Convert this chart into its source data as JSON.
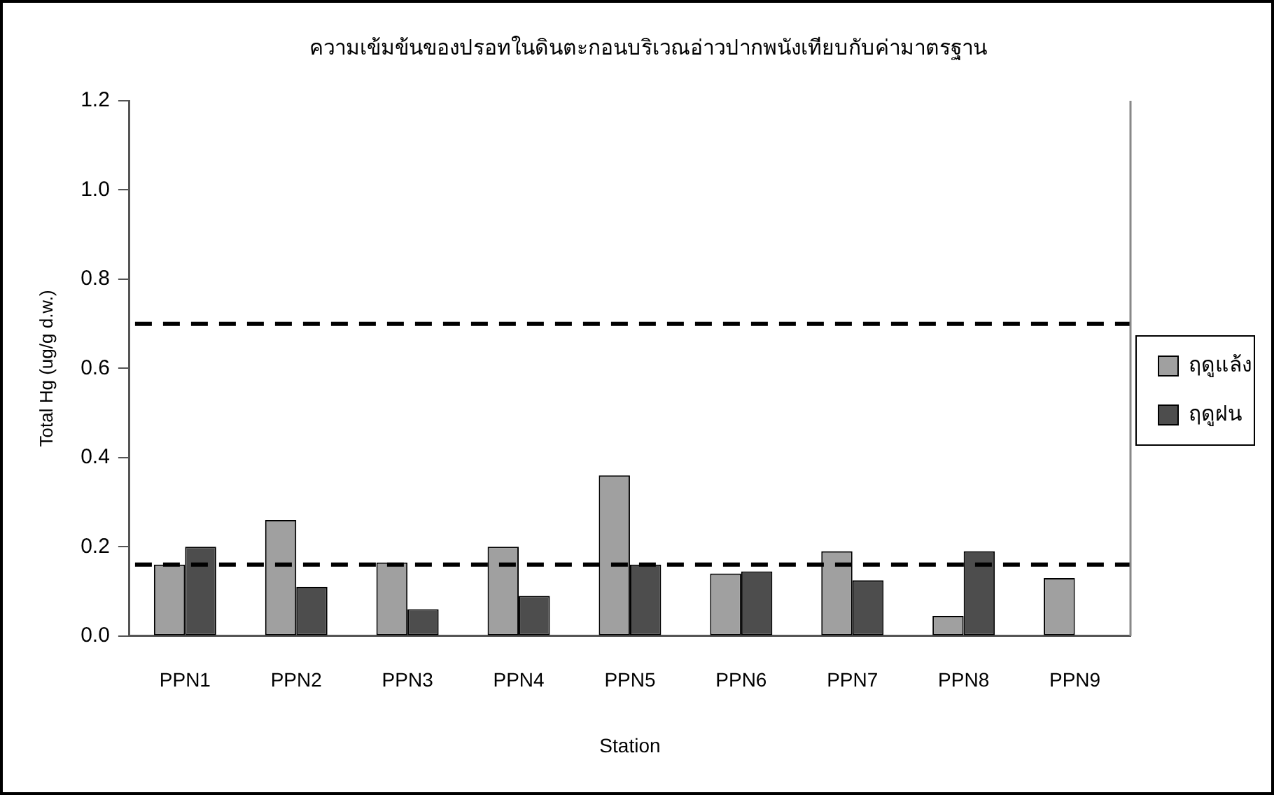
{
  "chart_data": {
    "type": "bar",
    "title": "ความเข้มข้นของปรอทในดินตะกอนบริเวณอ่าวปากพนังเทียบกับค่ามาตรฐาน",
    "xlabel": "Station",
    "ylabel": "Total Hg (ug/g d.w.)",
    "categories": [
      "PPN1",
      "PPN2",
      "PPN3",
      "PPN4",
      "PPN5",
      "PPN6",
      "PPN7",
      "PPN8",
      "PPN9"
    ],
    "series": [
      {
        "name": "ฤดูแล้ง",
        "color": "#a0a0a0",
        "values": [
          0.16,
          0.26,
          0.165,
          0.2,
          0.36,
          0.14,
          0.19,
          0.045,
          0.13
        ]
      },
      {
        "name": "ฤดูฝน",
        "color": "#4d4d4d",
        "values": [
          0.2,
          0.11,
          0.06,
          0.09,
          0.16,
          0.145,
          0.125,
          0.19,
          null
        ]
      }
    ],
    "ylim": [
      0,
      1.2
    ],
    "yticks": [
      {
        "value": 0,
        "label": "0.0"
      },
      {
        "value": 0.2,
        "label": "0.2"
      },
      {
        "value": 0.4,
        "label": "0.4"
      },
      {
        "value": 0.6,
        "label": "0.6"
      },
      {
        "value": 0.8,
        "label": "0.8"
      },
      {
        "value": 1,
        "label": "1.0"
      },
      {
        "value": 1.2,
        "label": "1.2"
      }
    ],
    "ref_lines": [
      {
        "axis": "y",
        "value": 0.7,
        "color": "#000000",
        "line_style": "dashed"
      },
      {
        "axis": "y",
        "value": 0.16,
        "color": "#000000",
        "line_style": "dashed"
      }
    ],
    "grid": false,
    "legend": "right"
  }
}
